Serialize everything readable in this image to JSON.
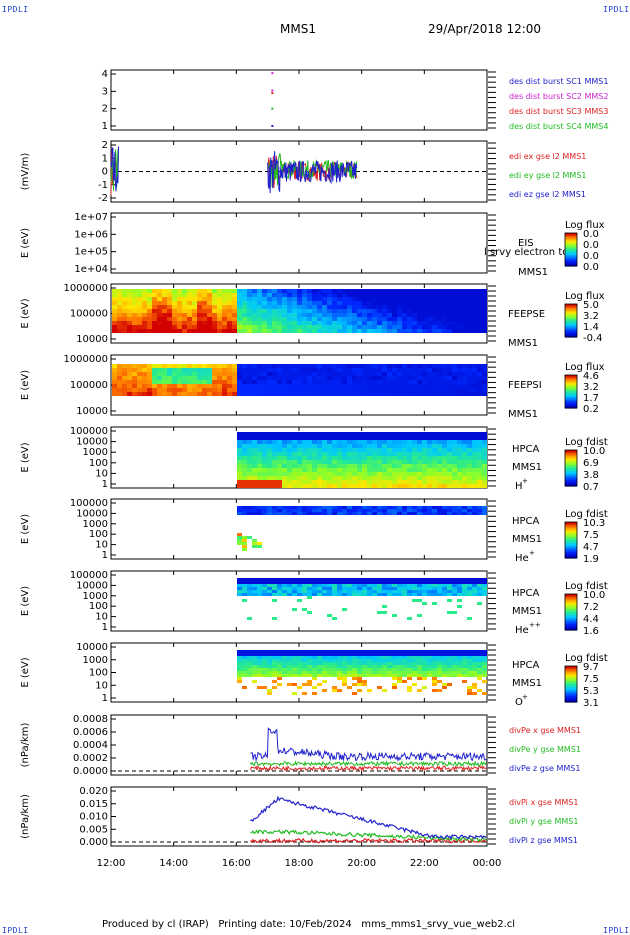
{
  "corners": {
    "tl": "IPDLI",
    "tr": "IPDLI",
    "bl": "IPDLI",
    "br": "IPDLI"
  },
  "header": {
    "title": "MMS1",
    "date": "29/Apr/2018 12:00"
  },
  "footer": {
    "text": "Produced by cl (IRAP)   Printing date: 10/Feb/2024   mms_mms1_srvy_vue_web2.cl"
  },
  "chart_data": [
    {
      "type": "scatter",
      "panel": "des-dist-burst",
      "ylabel": "",
      "yticks": [
        "1",
        "2",
        "3",
        "4"
      ],
      "series": [
        {
          "name": "des dist burst SC1 MMS1",
          "color": "#2222cc",
          "points": [
            [
              17.15,
              1.0
            ]
          ]
        },
        {
          "name": "des dist burst SC2 MMS2",
          "color": "#cc22cc",
          "points": [
            [
              17.15,
              3.05
            ],
            [
              17.15,
              4.05
            ]
          ]
        },
        {
          "name": "des dist burst SC3 MMS3",
          "color": "#dd2222",
          "points": [
            [
              17.15,
              2.9
            ]
          ]
        },
        {
          "name": "des dist burst SC4 MMS4",
          "color": "#22bb22",
          "points": [
            [
              17.15,
              2.0
            ]
          ]
        }
      ]
    },
    {
      "type": "line",
      "panel": "edi-e",
      "ylabel": "(mV/m)",
      "yticks": [
        "-2",
        "-1",
        "0",
        "1",
        "2"
      ],
      "series": [
        {
          "name": "edi ex gse l2 MMS1",
          "color": "#dd2222"
        },
        {
          "name": "edi ey gse l2 MMS1",
          "color": "#22bb22"
        },
        {
          "name": "edi ez gse l2 MMS1",
          "color": "#2222cc"
        }
      ],
      "intervals": [
        [
          12.0,
          12.25
        ],
        [
          17.0,
          19.85
        ]
      ]
    },
    {
      "type": "heatmap",
      "panel": "eis",
      "ylabel": "E (eV)",
      "yticks": [
        "1e+04",
        "1e+05",
        "1e+06",
        "1e+07"
      ],
      "labels": [
        "EIS",
        "MMS1"
      ],
      "overlay_text": "l srvy electron to",
      "colorbar_title": "Log flux",
      "colorbar_ticks": [
        "0.0",
        "0.0",
        "0.0",
        "0.0"
      ]
    },
    {
      "type": "heatmap",
      "panel": "feeps-e",
      "ylabel": "E (eV)",
      "yticks": [
        "10000",
        "100000",
        "1000000"
      ],
      "labels": [
        "FEEPSE",
        "MMS1"
      ],
      "colorbar_title": "Log flux",
      "colorbar_ticks": [
        "5.0",
        "3.2",
        "1.4",
        "-0.4"
      ]
    },
    {
      "type": "heatmap",
      "panel": "feeps-i",
      "ylabel": "E (eV)",
      "yticks": [
        "10000",
        "100000",
        "1000000"
      ],
      "labels": [
        "FEEPSI",
        "MMS1"
      ],
      "colorbar_title": "Log flux",
      "colorbar_ticks": [
        "4.6",
        "3.2",
        "1.7",
        "0.2"
      ]
    },
    {
      "type": "heatmap",
      "panel": "hpca-h",
      "ylabel": "E (eV)",
      "yticks": [
        "1",
        "10",
        "100",
        "1000",
        "10000",
        "100000"
      ],
      "labels": [
        "HPCA",
        "MMS1"
      ],
      "species": "H",
      "species_charge": "+",
      "colorbar_title": "Log fdist",
      "colorbar_ticks": [
        "10.0",
        "6.9",
        "3.8",
        "0.7"
      ]
    },
    {
      "type": "heatmap",
      "panel": "hpca-he",
      "ylabel": "E (eV)",
      "yticks": [
        "1",
        "10",
        "100",
        "1000",
        "10000",
        "100000"
      ],
      "labels": [
        "HPCA",
        "MMS1"
      ],
      "species": "He",
      "species_charge": "+",
      "colorbar_title": "Log fdist",
      "colorbar_ticks": [
        "10.3",
        "7.5",
        "4.7",
        "1.9"
      ]
    },
    {
      "type": "heatmap",
      "panel": "hpca-he2",
      "ylabel": "E (eV)",
      "yticks": [
        "1",
        "10",
        "100",
        "1000",
        "10000",
        "100000"
      ],
      "labels": [
        "HPCA",
        "MMS1"
      ],
      "species": "He",
      "species_charge": "++",
      "colorbar_title": "Log fdist",
      "colorbar_ticks": [
        "10.0",
        "7.2",
        "4.4",
        "1.6"
      ]
    },
    {
      "type": "heatmap",
      "panel": "hpca-o",
      "ylabel": "E (eV)",
      "yticks": [
        "1",
        "10",
        "100",
        "1000",
        "10000"
      ],
      "labels": [
        "HPCA",
        "MMS1"
      ],
      "species": "O",
      "species_charge": "+",
      "colorbar_title": "Log fdist",
      "colorbar_ticks": [
        "9.7",
        "7.5",
        "5.3",
        "3.1"
      ]
    },
    {
      "type": "line",
      "panel": "divpe",
      "ylabel": "(nPa/km)",
      "yticks": [
        "0.0000",
        "0.0002",
        "0.0004",
        "0.0006",
        "0.0008"
      ],
      "series": [
        {
          "name": "divPe x gse MMS1",
          "color": "#dd2222"
        },
        {
          "name": "divPe y gse MMS1",
          "color": "#22bb22"
        },
        {
          "name": "divPe z gse MMS1",
          "color": "#2222cc"
        }
      ]
    },
    {
      "type": "line",
      "panel": "divpi",
      "ylabel": "(nPa/km)",
      "yticks": [
        "0.000",
        "0.005",
        "0.010",
        "0.015",
        "0.020"
      ],
      "series": [
        {
          "name": "divPi x gse MMS1",
          "color": "#dd2222"
        },
        {
          "name": "divPi y gse MMS1",
          "color": "#22bb22"
        },
        {
          "name": "divPi z gse MMS1",
          "color": "#2222cc"
        }
      ]
    }
  ],
  "xaxis": {
    "ticks": [
      "12:00",
      "14:00",
      "16:00",
      "18:00",
      "20:00",
      "22:00",
      "00:00"
    ]
  }
}
